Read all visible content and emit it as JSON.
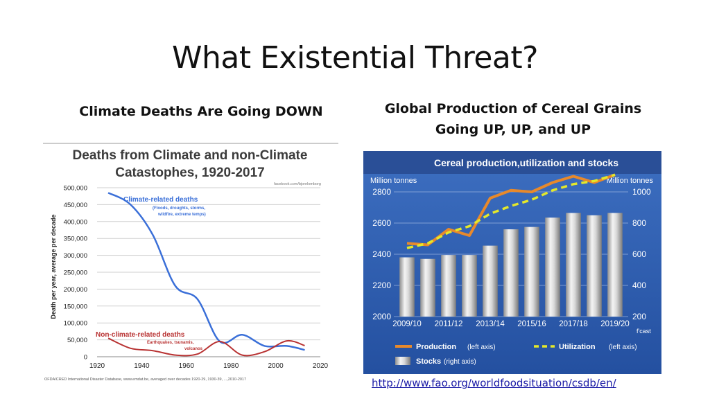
{
  "slide": {
    "title": "What Existential Threat?",
    "left_subtitle": "Climate Deaths Are Going DOWN",
    "right_subtitle_line1": "Global Production of Cereal Grains",
    "right_subtitle_line2": "Going UP, UP, and UP",
    "source_link": "http://www.fao.org/worldfoodsituation/csdb/en/"
  },
  "chart_data": [
    {
      "type": "line",
      "title": "Deaths from Climate and non-Climate Catastophes, 1920-2017",
      "credit": "facebook.com/bjornlomborg",
      "ylabel": "Death per year, average per decade",
      "xlabel": "",
      "xlim": [
        1920,
        2020
      ],
      "ylim": [
        0,
        500000
      ],
      "xticks": [
        "1920",
        "1940",
        "1960",
        "1980",
        "2000",
        "2020"
      ],
      "yticks": [
        "0",
        "50,000",
        "100,000",
        "150,000",
        "200,000",
        "250,000",
        "300,000",
        "350,000",
        "400,000",
        "450,000",
        "500,000"
      ],
      "series": [
        {
          "name": "Climate-related deaths",
          "note_line1": "(Floods, droughts, storms,",
          "note_line2": "wildfire, extreme temps)",
          "color": "#3a6fd8",
          "x": [
            1925,
            1935,
            1945,
            1955,
            1965,
            1975,
            1985,
            1995,
            2005,
            2013
          ],
          "y": [
            485000,
            450000,
            360000,
            210000,
            170000,
            45000,
            65000,
            32000,
            32000,
            20000
          ]
        },
        {
          "name": "Non-climate-related deaths",
          "note_line1": "Earthquakes, tsunamis,",
          "note_line2": "volcanos",
          "color": "#b83232",
          "x": [
            1925,
            1935,
            1945,
            1955,
            1965,
            1975,
            1985,
            1995,
            2005,
            2013
          ],
          "y": [
            55000,
            25000,
            18000,
            5000,
            8000,
            45000,
            5000,
            15000,
            47000,
            33000
          ]
        }
      ],
      "footnote": "OFDA/CRED International Disaster Database, www.emdat.be, averaged over decades 1920-29, 1930-39, ...,2010-2017"
    },
    {
      "type": "bar",
      "title": "Cereal production,utilization and stocks",
      "left_unit": "Million tonnes",
      "right_unit": "Million tonnes",
      "categories": [
        "2009/10",
        "2010/11",
        "2011/12",
        "2012/13",
        "2013/14",
        "2014/15",
        "2015/16",
        "2016/17",
        "2017/18",
        "2018/19",
        "2019/20"
      ],
      "xtick_labels": [
        "2009/10",
        "2011/12",
        "2013/14",
        "2015/16",
        "2017/18",
        "2019/20"
      ],
      "forecast_note": "f'cast",
      "left_axis": {
        "ticks": [
          "2000",
          "2200",
          "2400",
          "2600",
          "2800"
        ],
        "range": [
          2000,
          2800
        ]
      },
      "right_axis": {
        "ticks": [
          "200",
          "400",
          "600",
          "800",
          "1000"
        ],
        "range": [
          200,
          1000
        ]
      },
      "series": [
        {
          "name": "Stocks",
          "axis_note": "(right axis)",
          "kind": "bar",
          "axis": "right",
          "values": [
            580,
            570,
            595,
            595,
            655,
            760,
            775,
            835,
            865,
            850,
            865
          ]
        },
        {
          "name": "Production",
          "axis_note": "(left axis)",
          "kind": "line",
          "axis": "left",
          "color": "#e8892b",
          "values": [
            2470,
            2460,
            2560,
            2520,
            2760,
            2810,
            2800,
            2860,
            2900,
            2860,
            2910
          ]
        },
        {
          "name": "Utilization",
          "axis_note": "(left axis)",
          "kind": "dashed-line",
          "axis": "left",
          "color": "#e4e82a",
          "values": [
            2440,
            2470,
            2540,
            2580,
            2660,
            2710,
            2750,
            2810,
            2850,
            2870,
            2910
          ]
        }
      ]
    }
  ]
}
